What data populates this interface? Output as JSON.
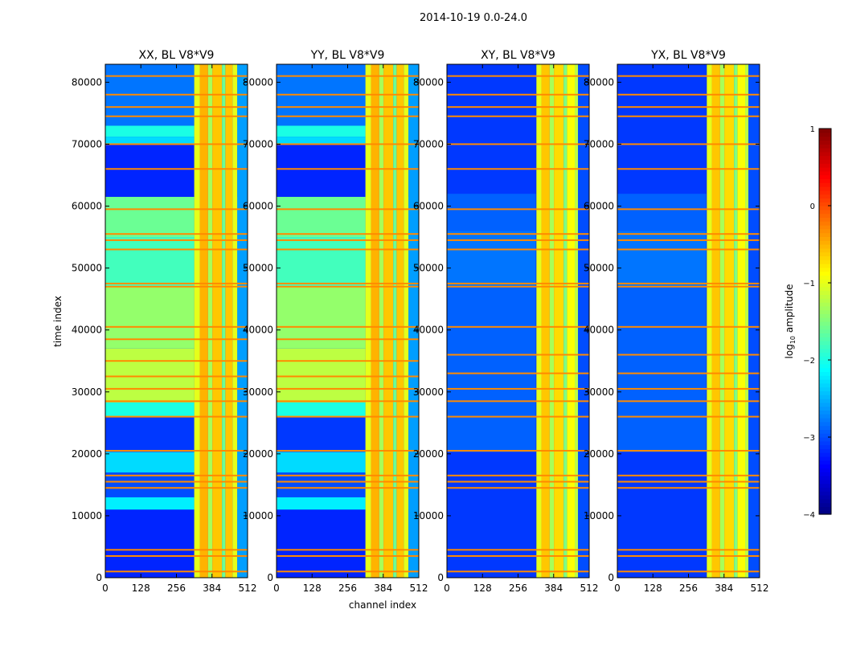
{
  "chart_data": {
    "type": "heatmap",
    "title": "2014-10-19 0.0-24.0",
    "xlabel": "channel index",
    "ylabel": "time index",
    "xlim": [
      0,
      512
    ],
    "ylim": [
      0,
      82900
    ],
    "xticks": [
      0,
      128,
      256,
      384,
      512
    ],
    "yticks": [
      0,
      10000,
      20000,
      30000,
      40000,
      50000,
      60000,
      70000,
      80000
    ],
    "colorbar": {
      "label": "log10 amplitude",
      "label_main": "log",
      "label_sub": "10",
      "label_rest": " amplitude",
      "range": [
        -4,
        1
      ],
      "ticks": [
        -4,
        -3,
        -2,
        -1,
        0,
        1
      ],
      "tick_labels": [
        "−4",
        "−3",
        "−2",
        "−1",
        "0",
        "1"
      ],
      "colormap": "jet"
    },
    "panels": [
      {
        "title": "XX, BL V8*V9",
        "time_regions": [
          [
            0,
            11000,
            -3.2
          ],
          [
            11000,
            13000,
            -2.2
          ],
          [
            13000,
            17000,
            -3.0
          ],
          [
            17000,
            20300,
            -2.3
          ],
          [
            20300,
            26000,
            -3.1
          ],
          [
            26000,
            28300,
            -2.0
          ],
          [
            28300,
            37000,
            -1.2
          ],
          [
            37000,
            47000,
            -1.4
          ],
          [
            47000,
            55000,
            -1.8
          ],
          [
            55000,
            61500,
            -1.6
          ],
          [
            61500,
            70000,
            -3.2
          ],
          [
            70000,
            71200,
            -2.3
          ],
          [
            71200,
            73000,
            -2.0
          ],
          [
            73000,
            82900,
            -2.8
          ]
        ],
        "channel_band": [
          [
            320,
            340,
            -1.0
          ],
          [
            340,
            370,
            -0.5
          ],
          [
            370,
            385,
            -1.3
          ],
          [
            385,
            420,
            -0.6
          ],
          [
            420,
            432,
            -1.6
          ],
          [
            432,
            458,
            -0.6
          ],
          [
            458,
            475,
            -1.0
          ],
          [
            475,
            512,
            -2.6
          ]
        ],
        "rfi_lines": [
          1000,
          3500,
          4500,
          14500,
          15500,
          16500,
          20500,
          26000,
          28500,
          30500,
          32500,
          35000,
          38500,
          40500,
          47000,
          47500,
          53000,
          54500,
          55500,
          59500,
          66000,
          70000,
          74500,
          76000,
          78000,
          81000
        ]
      },
      {
        "title": "YY, BL V8*V9",
        "time_regions": [
          [
            0,
            11000,
            -3.2
          ],
          [
            11000,
            13000,
            -2.2
          ],
          [
            13000,
            17000,
            -3.0
          ],
          [
            17000,
            20300,
            -2.3
          ],
          [
            20300,
            26000,
            -3.1
          ],
          [
            26000,
            28300,
            -2.0
          ],
          [
            28300,
            37000,
            -1.2
          ],
          [
            37000,
            47000,
            -1.4
          ],
          [
            47000,
            55000,
            -1.8
          ],
          [
            55000,
            61500,
            -1.6
          ],
          [
            61500,
            70000,
            -3.2
          ],
          [
            70000,
            71200,
            -2.3
          ],
          [
            71200,
            73000,
            -2.0
          ],
          [
            73000,
            82900,
            -2.8
          ]
        ],
        "channel_band": [
          [
            320,
            340,
            -1.0
          ],
          [
            340,
            370,
            -0.5
          ],
          [
            370,
            385,
            -1.3
          ],
          [
            385,
            420,
            -0.6
          ],
          [
            420,
            432,
            -1.6
          ],
          [
            432,
            458,
            -0.6
          ],
          [
            458,
            475,
            -1.0
          ],
          [
            475,
            512,
            -2.6
          ]
        ],
        "rfi_lines": [
          1000,
          3500,
          4500,
          14500,
          15500,
          16500,
          20500,
          26000,
          28500,
          30500,
          32500,
          35000,
          38500,
          40500,
          47000,
          47500,
          53000,
          54500,
          55500,
          59500,
          66000,
          70000,
          74500,
          76000,
          78000,
          81000
        ]
      },
      {
        "title": "XY, BL V8*V9",
        "time_regions": [
          [
            0,
            20300,
            -3.1
          ],
          [
            20300,
            47000,
            -2.9
          ],
          [
            47000,
            56000,
            -2.8
          ],
          [
            56000,
            62000,
            -2.9
          ],
          [
            62000,
            82900,
            -3.1
          ]
        ],
        "channel_band": [
          [
            322,
            340,
            -1.0
          ],
          [
            340,
            370,
            -0.6
          ],
          [
            370,
            385,
            -1.3
          ],
          [
            385,
            420,
            -0.7
          ],
          [
            420,
            432,
            -1.5
          ],
          [
            432,
            460,
            -0.9
          ],
          [
            460,
            472,
            -1.2
          ],
          [
            472,
            512,
            -3.0
          ]
        ],
        "rfi_lines": [
          1000,
          3500,
          4500,
          14500,
          15500,
          16500,
          20500,
          26000,
          28500,
          30500,
          33000,
          36000,
          40500,
          47000,
          47500,
          53000,
          54500,
          55500,
          59500,
          66000,
          70000,
          74500,
          76000,
          78000,
          81000
        ]
      },
      {
        "title": "YX, BL V8*V9",
        "time_regions": [
          [
            0,
            20300,
            -3.1
          ],
          [
            20300,
            47000,
            -2.9
          ],
          [
            47000,
            56000,
            -2.8
          ],
          [
            56000,
            62000,
            -2.9
          ],
          [
            62000,
            82900,
            -3.1
          ]
        ],
        "channel_band": [
          [
            322,
            340,
            -1.0
          ],
          [
            340,
            370,
            -0.6
          ],
          [
            370,
            385,
            -1.3
          ],
          [
            385,
            420,
            -0.7
          ],
          [
            420,
            432,
            -1.5
          ],
          [
            432,
            460,
            -0.9
          ],
          [
            460,
            472,
            -1.2
          ],
          [
            472,
            512,
            -3.0
          ]
        ],
        "rfi_lines": [
          1000,
          3500,
          4500,
          14500,
          15500,
          16500,
          20500,
          26000,
          28500,
          30500,
          33000,
          36000,
          40500,
          47000,
          47500,
          53000,
          54500,
          55500,
          59500,
          66000,
          70000,
          74500,
          76000,
          78000,
          81000
        ]
      }
    ],
    "rfi_level": -0.3
  }
}
